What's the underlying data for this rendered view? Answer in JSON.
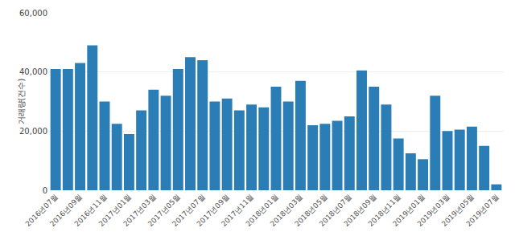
{
  "chart_data": {
    "type": "bar",
    "ylabel": "거래량(건수)",
    "categories": [
      "2016년07월",
      null,
      "2016년09월",
      null,
      "2016년11월",
      null,
      "2017년01월",
      null,
      "2017년03월",
      null,
      "2017년05월",
      null,
      "2017년07월",
      null,
      "2017년09월",
      null,
      "2017년11월",
      null,
      "2018년01월",
      null,
      "2018년03월",
      null,
      "2018년05월",
      null,
      "2018년07월",
      null,
      "2018년09월",
      null,
      "2018년11월",
      null,
      "2019년01월",
      null,
      "2019년03월",
      null,
      "2019년05월",
      null,
      "2019년07월"
    ],
    "values": [
      41000,
      41000,
      43000,
      49000,
      30000,
      22500,
      19000,
      27000,
      34000,
      32000,
      41000,
      45000,
      44000,
      30000,
      31000,
      27000,
      29000,
      28000,
      35000,
      30000,
      37000,
      22000,
      22500,
      23500,
      25000,
      40500,
      35000,
      29000,
      17500,
      12500,
      10500,
      32000,
      20000,
      20500,
      21500,
      15000,
      2000
    ],
    "color": "#2a7db5",
    "ylim": [
      0,
      60000
    ],
    "yticks": [
      0,
      {
        "value": 20000,
        "label": "20,000"
      },
      {
        "value": 40000,
        "label": "40,000"
      },
      {
        "value": 60000,
        "label": "60,000"
      }
    ],
    "grid": true
  }
}
